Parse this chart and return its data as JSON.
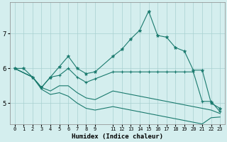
{
  "xlabel": "Humidex (Indice chaleur)",
  "background_color": "#d4eeee",
  "grid_color": "#a8d0d0",
  "line_color": "#1a7a6e",
  "xlim_min": -0.5,
  "xlim_max": 23.5,
  "ylim_min": 4.4,
  "ylim_max": 7.9,
  "yticks": [
    5,
    6,
    7
  ],
  "xtick_labels": [
    "0",
    "1",
    "2",
    "3",
    "4",
    "5",
    "6",
    "7",
    "8",
    "9",
    "11",
    "12",
    "13",
    "14",
    "15",
    "16",
    "17",
    "18",
    "19",
    "20",
    "21",
    "22",
    "23"
  ],
  "xtick_positions": [
    0,
    1,
    2,
    3,
    4,
    5,
    6,
    7,
    8,
    9,
    11,
    12,
    13,
    14,
    15,
    16,
    17,
    18,
    19,
    20,
    21,
    22,
    23
  ],
  "series1_x": [
    0,
    1,
    2,
    3,
    4,
    5,
    6,
    7,
    8,
    9,
    11,
    12,
    13,
    14,
    15,
    16,
    17,
    18,
    19,
    20,
    21,
    22,
    23
  ],
  "series1_y": [
    6.0,
    6.0,
    5.75,
    5.45,
    5.75,
    6.05,
    6.35,
    6.0,
    5.85,
    5.9,
    6.35,
    6.55,
    6.85,
    7.1,
    7.65,
    6.95,
    6.9,
    6.6,
    6.5,
    5.95,
    5.95,
    5.0,
    4.85
  ],
  "series2_x": [
    0,
    2,
    3,
    4,
    5,
    6,
    7,
    8,
    9,
    11,
    12,
    13,
    14,
    15,
    16,
    17,
    18,
    19,
    20,
    21,
    22,
    23
  ],
  "series2_y": [
    6.0,
    5.75,
    5.45,
    5.75,
    5.8,
    6.0,
    5.75,
    5.6,
    5.7,
    5.9,
    5.9,
    5.9,
    5.9,
    5.9,
    5.9,
    5.9,
    5.9,
    5.9,
    5.9,
    5.05,
    5.05,
    4.75
  ],
  "series3_x": [
    0,
    2,
    3,
    4,
    5,
    6,
    7,
    8,
    9,
    11,
    12,
    13,
    14,
    15,
    16,
    17,
    18,
    19,
    20,
    21,
    22,
    23
  ],
  "series3_y": [
    6.0,
    5.75,
    5.45,
    5.35,
    5.5,
    5.5,
    5.3,
    5.15,
    5.1,
    5.35,
    5.3,
    5.25,
    5.2,
    5.15,
    5.1,
    5.05,
    5.0,
    4.95,
    4.9,
    4.85,
    4.8,
    4.7
  ],
  "series4_x": [
    0,
    2,
    3,
    4,
    5,
    6,
    7,
    8,
    9,
    11,
    12,
    13,
    14,
    15,
    16,
    17,
    18,
    19,
    20,
    21,
    22,
    23
  ],
  "series4_y": [
    6.0,
    5.75,
    5.4,
    5.25,
    5.3,
    5.2,
    5.0,
    4.85,
    4.8,
    4.9,
    4.85,
    4.8,
    4.75,
    4.7,
    4.65,
    4.6,
    4.55,
    4.5,
    4.45,
    4.4,
    4.58,
    4.6
  ]
}
